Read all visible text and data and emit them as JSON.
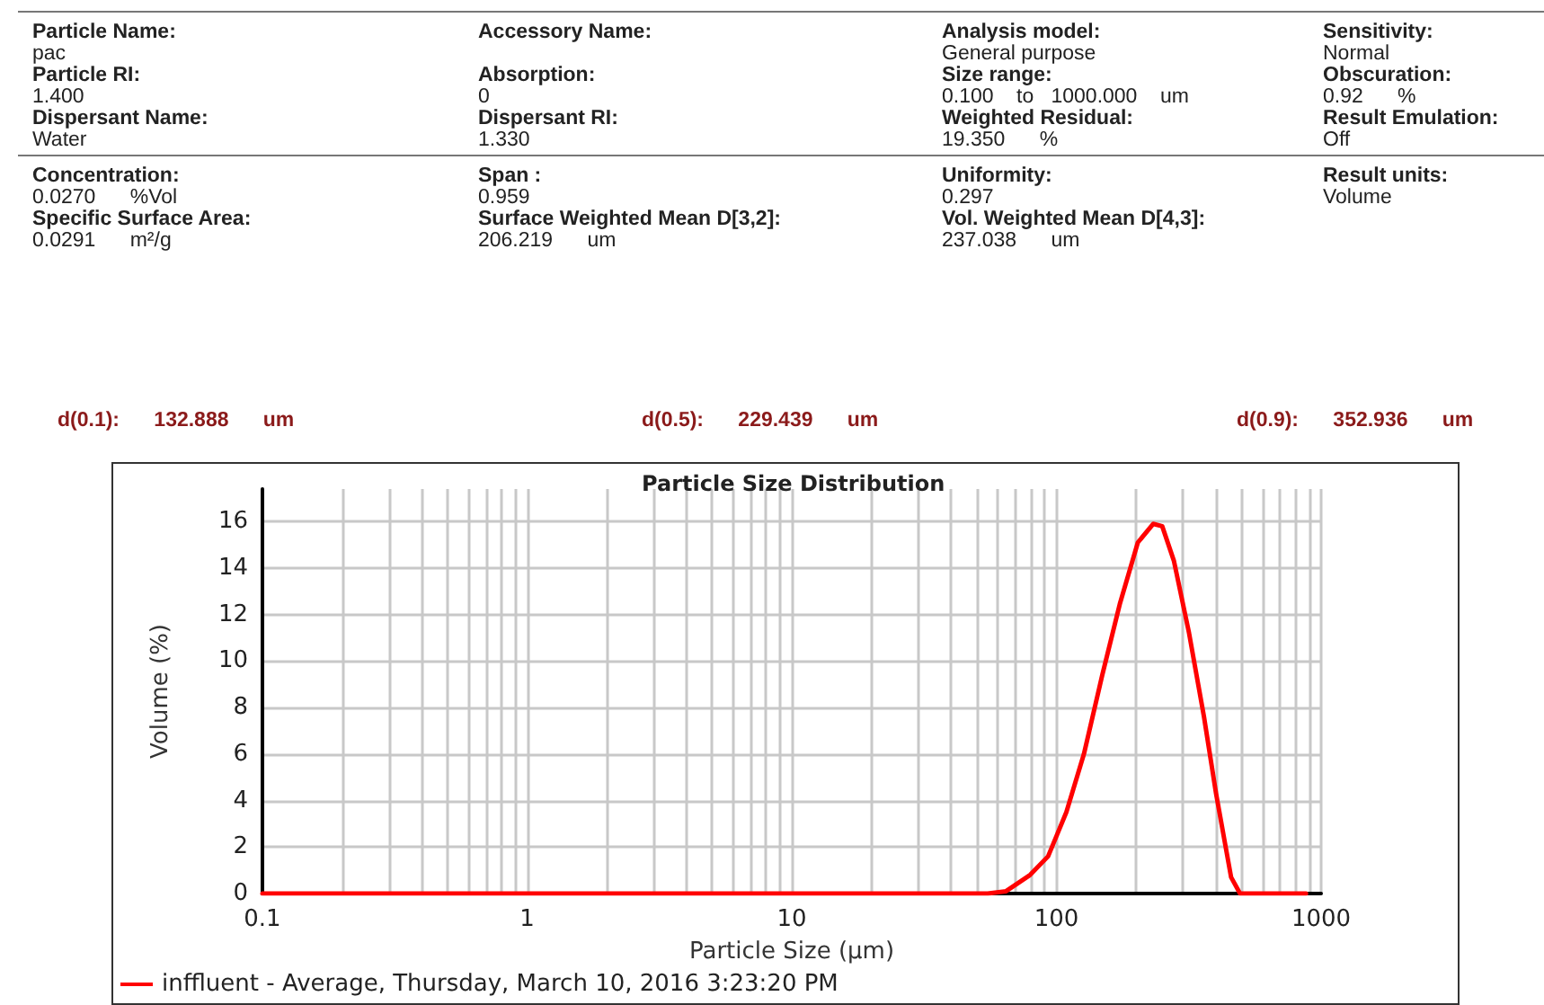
{
  "chart_data": {
    "type": "line",
    "title": "Particle Size Distribution",
    "xlabel": "Particle Size (μm)",
    "ylabel": "Volume (%)",
    "annotations": [
      "Particle Name:\npac",
      "Accessory Name:",
      "Analysis model:\nGeneral purpose",
      "Sensitivity:\nNormal",
      "Particle RI:\n1.400",
      "Absorption:\n0",
      "Size range:\n0.100    to   1000.000    um",
      "Obscuration:\n0.92      %",
      "Dispersant Name:\nWater",
      "Dispersant RI:\n1.330",
      "Weighted Residual:\n19.350      %",
      "Result Emulation:\nOff",
      "Concentration:\n0.0270      %Vol",
      "Span :\n0.959",
      "Uniformity:\n0.297",
      "Result units:\nVolume",
      "Specific Surface Area:\n0.0291      m²/g",
      "Surface Weighted Mean D[3,2]:\n206.219      um",
      "Vol. Weighted Mean D[4,3]:\n237.038      um",
      "d(0.1):      132.888      um",
      "d(0.5):      229.439      um",
      "d(0.9):      352.936      um"
    ],
    "log": "x",
    "grid": true,
    "legend": "bottom left",
    "marker": "none",
    "line_style": "solid",
    "xlim": [
      0.1,
      1000
    ],
    "ylim": [
      0,
      17.4
    ],
    "xticks": [
      0.1,
      {
        "value": 0.2,
        "label": null
      },
      {
        "value": 0.3,
        "label": null
      },
      {
        "value": 0.4,
        "label": null
      },
      {
        "value": 0.5,
        "label": null
      },
      {
        "value": 0.6,
        "label": null
      },
      {
        "value": 0.7,
        "label": null
      },
      {
        "value": 0.8,
        "label": null
      },
      {
        "value": 0.9,
        "label": null
      },
      1,
      {
        "value": 2,
        "label": null
      },
      {
        "value": 3,
        "label": null
      },
      {
        "value": 4,
        "label": null
      },
      {
        "value": 5,
        "label": null
      },
      {
        "value": 6,
        "label": null
      },
      {
        "value": 7,
        "label": null
      },
      {
        "value": 8,
        "label": null
      },
      {
        "value": 9,
        "label": null
      },
      10,
      {
        "value": 20,
        "label": null
      },
      {
        "value": 30,
        "label": null
      },
      {
        "value": 40,
        "label": null
      },
      {
        "value": 50,
        "label": null
      },
      {
        "value": 60,
        "label": null
      },
      {
        "value": 70,
        "label": null
      },
      {
        "value": 80,
        "label": null
      },
      {
        "value": 90,
        "label": null
      },
      100,
      {
        "value": 200,
        "label": null
      },
      {
        "value": 300,
        "label": null
      },
      {
        "value": 400,
        "label": null
      },
      {
        "value": 500,
        "label": null
      },
      {
        "value": 600,
        "label": null
      },
      {
        "value": 700,
        "label": null
      },
      {
        "value": 800,
        "label": null
      },
      {
        "value": 900,
        "label": null
      },
      1000
    ],
    "yticks": [
      0,
      2,
      4,
      6,
      8,
      10,
      12,
      14,
      16
    ],
    "series": [
      {
        "name": "inffluent - Average, Thursday, March 10, 2016 3:23:20 PM",
        "color": "#ff0000",
        "x": [
          0.1,
          1,
          10,
          55,
          64.5,
          79.5,
          93,
          109,
          127,
          149,
          174,
          203,
          232,
          251,
          278,
          317,
          361,
          401,
          457,
          494,
          877
        ],
        "values": [
          0,
          0,
          0,
          0,
          0.1,
          0.8,
          1.6,
          3.5,
          6.0,
          9.4,
          12.5,
          15.1,
          15.9,
          15.8,
          14.3,
          11.2,
          7.6,
          4.3,
          0.7,
          0,
          0
        ]
      }
    ]
  }
}
